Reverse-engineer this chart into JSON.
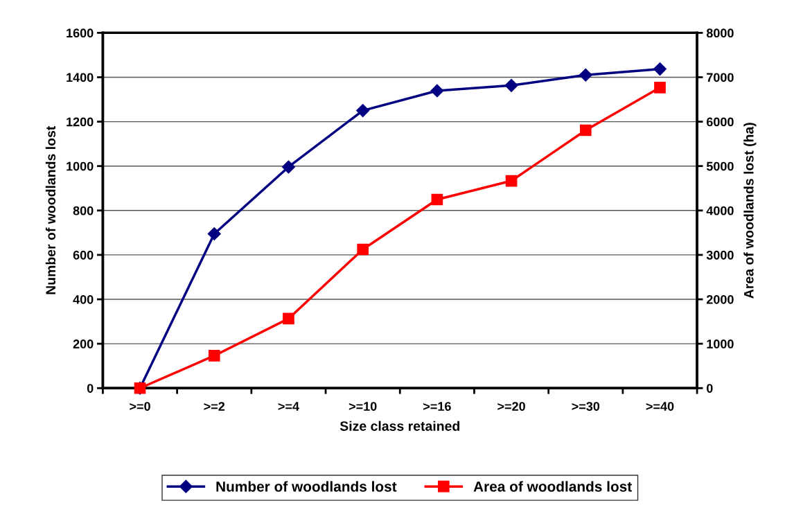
{
  "chart_data": {
    "type": "line",
    "xlabel": "Size class retained",
    "ylabel": "Number of woodlands lost",
    "y2label": "Area of woodlands lost (ha)",
    "categories": [
      ">=0",
      ">=2",
      ">=4",
      ">=10",
      ">=16",
      ">=20",
      ">=30",
      ">=40"
    ],
    "series": [
      {
        "name": "Number of woodlands lost",
        "color": "#000080",
        "marker": "diamond",
        "values": [
          0,
          695,
          996,
          1250,
          1339,
          1363,
          1410,
          1437
        ]
      },
      {
        "name": "Area of woodlands lost",
        "color": "#ff0000",
        "marker": "square",
        "axis": "y2",
        "values": [
          0,
          730,
          1565,
          3124,
          4247,
          4667,
          5806,
          6769
        ]
      }
    ],
    "ylim": [
      0,
      1600
    ],
    "yticks": [
      0,
      200,
      400,
      600,
      800,
      1000,
      1200,
      1400,
      1600
    ],
    "y2lim": [
      0,
      8000
    ],
    "y2ticks": [
      0,
      1000,
      2000,
      3000,
      4000,
      5000,
      6000,
      7000,
      8000
    ],
    "grid": "y",
    "legend": "bottom",
    "line_style": "solid"
  }
}
